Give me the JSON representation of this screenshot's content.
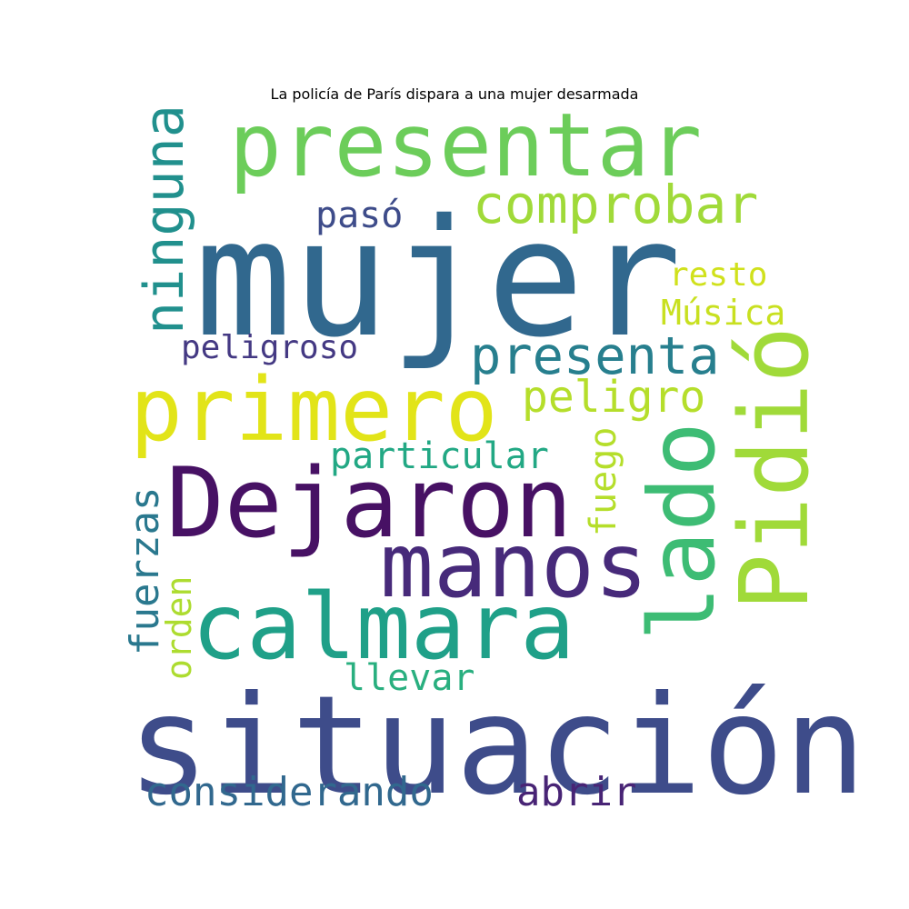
{
  "title": "La policía de París dispara a una mujer desarmada",
  "words": [
    {
      "text": "mujer",
      "color": "#31688e"
    },
    {
      "text": "situación",
      "color": "#3e4c8a"
    },
    {
      "text": "presentar",
      "color": "#6ccd5a"
    },
    {
      "text": "Dejaron",
      "color": "#471164"
    },
    {
      "text": "primero",
      "color": "#e2e418"
    },
    {
      "text": "calmara",
      "color": "#1fa088"
    },
    {
      "text": "manos",
      "color": "#472a7a"
    },
    {
      "text": "Pidió",
      "color": "#a0da39"
    },
    {
      "text": "lado",
      "color": "#3dbc74"
    },
    {
      "text": "comprobar",
      "color": "#a0da39"
    },
    {
      "text": "ninguna",
      "color": "#21908d"
    },
    {
      "text": "presenta",
      "color": "#277f8e"
    },
    {
      "text": "pasó",
      "color": "#3e4c8a"
    },
    {
      "text": "peligro",
      "color": "#b5de2b"
    },
    {
      "text": "resto",
      "color": "#d0e11c"
    },
    {
      "text": "Música",
      "color": "#c8e020"
    },
    {
      "text": "peligroso",
      "color": "#443983"
    },
    {
      "text": "particular",
      "color": "#22a884"
    },
    {
      "text": "fuego",
      "color": "#b5de2b"
    },
    {
      "text": "fuerzas",
      "color": "#2a788e"
    },
    {
      "text": "orden",
      "color": "#addc30"
    },
    {
      "text": "llevar",
      "color": "#29af7f"
    },
    {
      "text": "considerando",
      "color": "#31688e"
    },
    {
      "text": "abrir",
      "color": "#482475"
    }
  ]
}
